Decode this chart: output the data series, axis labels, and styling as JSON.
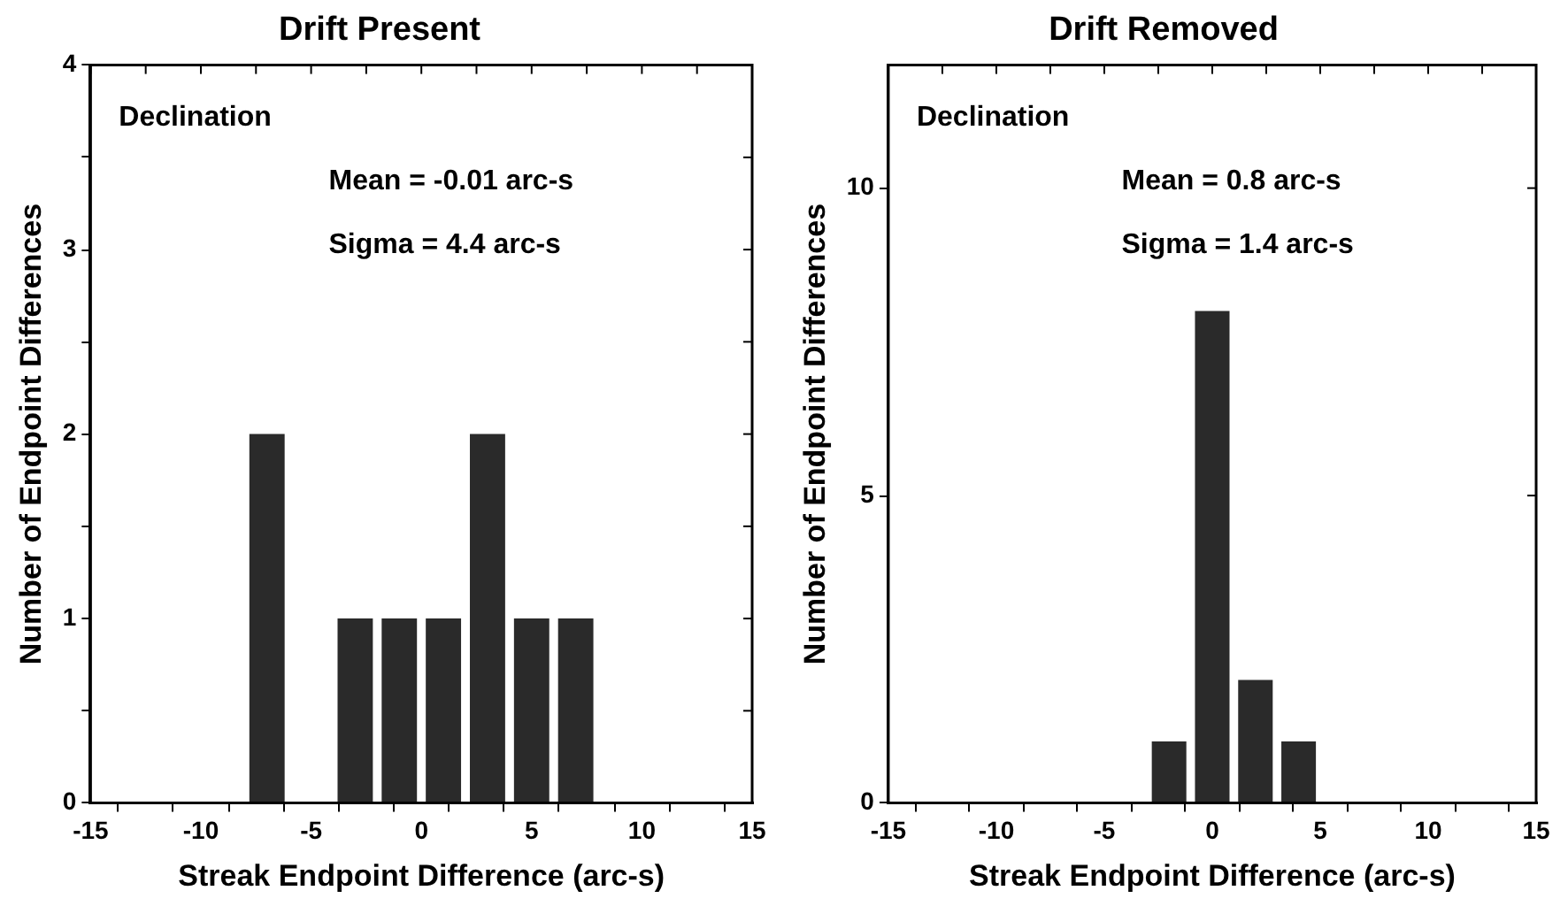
{
  "chart_data": [
    {
      "type": "histogram",
      "title": "Drift Present",
      "xlabel": "Streak Endpoint Difference (arc-s)",
      "ylabel": "Number of Endpoint Differences",
      "bins": [
        -8,
        -6,
        -4,
        -2,
        0,
        2,
        4,
        6,
        8
      ],
      "values": [
        2,
        0,
        1,
        1,
        1,
        2,
        1,
        1
      ],
      "color": "#2a2a2a",
      "xlim": [
        -15,
        15
      ],
      "xticks": [
        -15,
        {
          "value": -12.5,
          "label": null
        },
        -10,
        {
          "value": -7.5,
          "label": null
        },
        -5,
        {
          "value": -2.5,
          "label": null
        },
        0,
        {
          "value": 2.5,
          "label": null
        },
        5,
        {
          "value": 7.5,
          "label": null
        },
        10,
        {
          "value": 12.5,
          "label": null
        },
        15
      ],
      "ylim": [
        0,
        4
      ],
      "yticks": [
        0,
        {
          "value": 0.5,
          "label": null
        },
        1,
        {
          "value": 1.5,
          "label": null
        },
        2,
        {
          "value": 2.5,
          "label": null
        },
        3,
        {
          "value": 3.5,
          "label": null
        },
        4
      ],
      "grid": false,
      "legend": false,
      "annotations": [
        "Declination",
        "Mean = -0.01 arc-s",
        "Sigma = 4.4 arc-s"
      ]
    },
    {
      "type": "histogram",
      "title": "Drift Removed",
      "xlabel": "Streak Endpoint Difference (arc-s)",
      "ylabel": "Number of Endpoint Differences",
      "bins": [
        -3,
        -1,
        1,
        3,
        5
      ],
      "values": [
        1,
        8,
        2,
        1
      ],
      "color": "#2a2a2a",
      "xlim": [
        -15,
        15
      ],
      "xticks": [
        -15,
        {
          "value": -12.5,
          "label": null
        },
        -10,
        {
          "value": -7.5,
          "label": null
        },
        -5,
        {
          "value": -2.5,
          "label": null
        },
        0,
        {
          "value": 2.5,
          "label": null
        },
        5,
        {
          "value": 7.5,
          "label": null
        },
        10,
        {
          "value": 12.5,
          "label": null
        },
        15
      ],
      "ylim": [
        0,
        12
      ],
      "yticks": [
        0,
        5,
        10
      ],
      "grid": false,
      "legend": false,
      "annotations": [
        "Declination",
        "Mean = 0.8 arc-s",
        "Sigma = 1.4 arc-s"
      ]
    }
  ]
}
